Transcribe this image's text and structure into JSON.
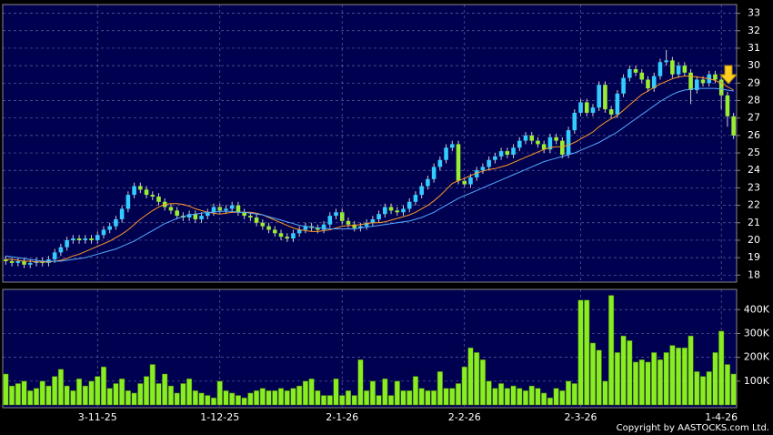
{
  "chart_data": [
    {
      "type": "candlestick",
      "up_color": "#33ccff",
      "down_color": "#99ee33",
      "grid": true,
      "ylim": [
        17.6,
        33.5
      ],
      "yticks": [
        18,
        19,
        20,
        21,
        22,
        23,
        24,
        25,
        26,
        27,
        28,
        29,
        30,
        31,
        32,
        33
      ],
      "open": [
        18.9,
        18.8,
        18.7,
        18.8,
        18.6,
        18.7,
        18.8,
        18.7,
        18.9,
        19.3,
        19.6,
        20.0,
        20.1,
        20.0,
        20.1,
        20.0,
        20.3,
        20.6,
        20.8,
        21.2,
        21.8,
        22.6,
        23.1,
        22.9,
        22.6,
        22.5,
        22.2,
        21.9,
        21.7,
        21.4,
        21.3,
        21.5,
        21.2,
        21.4,
        21.6,
        21.9,
        21.7,
        21.8,
        22.0,
        21.6,
        21.4,
        21.3,
        21.0,
        20.8,
        20.6,
        20.4,
        20.2,
        20.1,
        20.4,
        20.6,
        20.8,
        20.7,
        20.6,
        20.9,
        21.4,
        21.6,
        21.1,
        20.9,
        20.7,
        20.8,
        21.0,
        21.2,
        21.5,
        21.9,
        21.7,
        21.6,
        21.8,
        22.2,
        22.6,
        23.1,
        23.5,
        24.2,
        24.6,
        25.3,
        25.5,
        23.4,
        23.2,
        23.6,
        24.0,
        24.2,
        24.6,
        24.8,
        25.1,
        24.9,
        25.3,
        25.7,
        26.0,
        25.7,
        25.5,
        25.2,
        25.9,
        25.7,
        24.9,
        26.3,
        27.3,
        27.9,
        27.3,
        27.6,
        28.9,
        27.5,
        27.2,
        28.4,
        29.3,
        29.8,
        29.6,
        29.2,
        28.7,
        29.4,
        30.2,
        30.3,
        29.5,
        30.0,
        29.6,
        28.6,
        29.2,
        29.0,
        29.5,
        29.2,
        28.3,
        27.1
      ],
      "high": [
        19.1,
        19.0,
        19.0,
        19.0,
        18.9,
        19.0,
        19.0,
        19.1,
        19.5,
        19.8,
        20.2,
        20.3,
        20.3,
        20.3,
        20.3,
        20.5,
        20.8,
        21.0,
        21.4,
        22.0,
        22.8,
        23.3,
        23.3,
        23.1,
        22.8,
        22.7,
        22.4,
        22.1,
        21.9,
        21.6,
        21.7,
        21.7,
        21.6,
        21.8,
        22.1,
        22.1,
        22.0,
        22.2,
        22.2,
        21.8,
        21.6,
        21.5,
        21.2,
        21.0,
        20.8,
        20.6,
        20.4,
        20.6,
        20.8,
        21.0,
        21.0,
        20.9,
        21.1,
        21.6,
        21.8,
        21.8,
        21.3,
        21.1,
        21.0,
        21.2,
        21.4,
        21.7,
        22.1,
        22.1,
        21.9,
        22.0,
        22.4,
        22.8,
        23.3,
        23.7,
        24.4,
        24.8,
        25.5,
        25.7,
        25.7,
        23.6,
        23.8,
        24.2,
        24.4,
        24.8,
        25.0,
        25.3,
        25.3,
        25.5,
        25.9,
        26.2,
        26.2,
        25.9,
        25.7,
        26.1,
        26.1,
        25.9,
        26.5,
        27.5,
        28.1,
        28.1,
        27.8,
        29.1,
        29.1,
        27.7,
        28.6,
        29.5,
        30.0,
        30.0,
        29.8,
        29.4,
        29.6,
        30.4,
        30.9,
        30.5,
        30.2,
        30.2,
        29.8,
        29.4,
        29.4,
        29.7,
        29.7,
        29.4,
        28.5,
        27.3
      ],
      "low": [
        18.6,
        18.5,
        18.5,
        18.4,
        18.4,
        18.5,
        18.5,
        18.5,
        18.7,
        19.1,
        19.4,
        19.8,
        19.8,
        19.8,
        19.8,
        19.8,
        20.1,
        20.4,
        20.6,
        21.0,
        21.6,
        22.4,
        22.7,
        22.4,
        22.3,
        22.0,
        21.7,
        21.5,
        21.2,
        21.1,
        21.1,
        21.0,
        21.0,
        21.2,
        21.4,
        21.5,
        21.5,
        21.6,
        21.4,
        21.2,
        21.1,
        20.8,
        20.6,
        20.4,
        20.2,
        20.0,
        19.9,
        19.9,
        20.2,
        20.4,
        20.5,
        20.4,
        20.4,
        20.7,
        21.2,
        20.9,
        20.7,
        20.5,
        20.5,
        20.6,
        20.8,
        21.0,
        21.3,
        21.5,
        21.4,
        21.4,
        21.6,
        22.0,
        22.4,
        22.9,
        23.3,
        24.0,
        24.4,
        25.1,
        23.2,
        23.0,
        23.0,
        23.4,
        23.8,
        24.0,
        24.4,
        24.6,
        24.7,
        24.7,
        25.1,
        25.5,
        25.5,
        25.3,
        25.0,
        25.0,
        25.5,
        24.7,
        24.7,
        26.1,
        27.1,
        27.1,
        27.1,
        27.4,
        27.3,
        27.0,
        27.0,
        28.2,
        29.1,
        29.4,
        29.0,
        28.5,
        28.5,
        29.2,
        30.0,
        29.3,
        29.3,
        29.4,
        27.8,
        28.4,
        28.8,
        28.8,
        29.0,
        27.5,
        26.5,
        25.8
      ],
      "close": [
        18.8,
        18.7,
        18.8,
        18.6,
        18.7,
        18.8,
        18.7,
        18.9,
        19.3,
        19.6,
        20.0,
        20.1,
        20.0,
        20.1,
        20.0,
        20.3,
        20.6,
        20.8,
        21.2,
        21.8,
        22.6,
        23.1,
        22.9,
        22.6,
        22.5,
        22.2,
        21.9,
        21.7,
        21.4,
        21.3,
        21.5,
        21.2,
        21.4,
        21.6,
        21.9,
        21.7,
        21.8,
        22.0,
        21.6,
        21.4,
        21.3,
        21.0,
        20.8,
        20.6,
        20.4,
        20.2,
        20.1,
        20.4,
        20.6,
        20.8,
        20.7,
        20.6,
        20.9,
        21.4,
        21.6,
        21.1,
        20.9,
        20.7,
        20.8,
        21.0,
        21.2,
        21.5,
        21.9,
        21.7,
        21.6,
        21.8,
        22.2,
        22.6,
        23.1,
        23.5,
        24.2,
        24.6,
        25.3,
        25.5,
        23.4,
        23.2,
        23.6,
        24.0,
        24.2,
        24.6,
        24.8,
        25.1,
        24.9,
        25.3,
        25.7,
        26.0,
        25.7,
        25.5,
        25.2,
        25.9,
        25.7,
        24.9,
        26.3,
        27.3,
        27.9,
        27.3,
        27.6,
        28.9,
        27.5,
        27.2,
        28.4,
        29.3,
        29.8,
        29.6,
        29.2,
        28.7,
        29.4,
        30.2,
        30.3,
        29.5,
        30.0,
        29.6,
        28.6,
        29.2,
        29.0,
        29.5,
        29.2,
        28.3,
        27.1,
        26.0
      ],
      "series": [
        {
          "color": "#ff9922",
          "values": [
            18.9,
            18.9,
            18.85,
            18.8,
            18.8,
            18.75,
            18.75,
            18.75,
            18.8,
            18.85,
            18.95,
            19.1,
            19.2,
            19.35,
            19.5,
            19.65,
            19.8,
            19.95,
            20.15,
            20.35,
            20.6,
            20.9,
            21.2,
            21.45,
            21.7,
            21.9,
            22.05,
            22.1,
            22.1,
            22.05,
            21.95,
            21.8,
            21.7,
            21.6,
            21.55,
            21.5,
            21.55,
            21.6,
            21.6,
            21.6,
            21.6,
            21.55,
            21.45,
            21.3,
            21.15,
            21.0,
            20.85,
            20.7,
            20.6,
            20.55,
            20.5,
            20.5,
            20.55,
            20.6,
            20.7,
            20.8,
            20.85,
            20.85,
            20.9,
            20.95,
            21.0,
            21.0,
            21.05,
            21.15,
            21.25,
            21.35,
            21.45,
            21.6,
            21.8,
            22.0,
            22.25,
            22.55,
            22.9,
            23.25,
            23.4,
            23.55,
            23.7,
            23.85,
            23.95,
            24.05,
            24.1,
            24.2,
            24.3,
            24.45,
            24.6,
            24.75,
            24.9,
            25.05,
            25.2,
            25.3,
            25.35,
            25.35,
            25.45,
            25.6,
            25.8,
            26.0,
            26.2,
            26.5,
            26.75,
            26.95,
            27.15,
            27.45,
            27.75,
            28.05,
            28.35,
            28.55,
            28.75,
            28.95,
            29.1,
            29.25,
            29.35,
            29.4,
            29.4,
            29.35,
            29.3,
            29.25,
            29.15,
            29.0,
            28.8,
            28.6
          ]
        },
        {
          "color": "#55aaff",
          "values": [
            19.1,
            19.05,
            19.0,
            18.95,
            18.9,
            18.85,
            18.8,
            18.8,
            18.8,
            18.8,
            18.85,
            18.9,
            18.95,
            19.0,
            19.1,
            19.2,
            19.3,
            19.4,
            19.5,
            19.65,
            19.8,
            19.95,
            20.15,
            20.35,
            20.55,
            20.75,
            20.95,
            21.1,
            21.25,
            21.35,
            21.45,
            21.5,
            21.55,
            21.6,
            21.6,
            21.65,
            21.65,
            21.65,
            21.6,
            21.6,
            21.55,
            21.5,
            21.45,
            21.35,
            21.25,
            21.15,
            21.05,
            20.95,
            20.85,
            20.8,
            20.75,
            20.7,
            20.7,
            20.65,
            20.65,
            20.65,
            20.65,
            20.65,
            20.7,
            20.75,
            20.8,
            20.85,
            20.9,
            20.95,
            21.0,
            21.05,
            21.1,
            21.2,
            21.3,
            21.45,
            21.6,
            21.8,
            22.0,
            22.2,
            22.4,
            22.55,
            22.7,
            22.85,
            23.0,
            23.15,
            23.3,
            23.45,
            23.6,
            23.75,
            23.9,
            24.05,
            24.2,
            24.35,
            24.5,
            24.6,
            24.7,
            24.8,
            24.9,
            25.0,
            25.15,
            25.3,
            25.45,
            25.6,
            25.8,
            26.0,
            26.2,
            26.45,
            26.7,
            26.95,
            27.2,
            27.45,
            27.7,
            27.95,
            28.15,
            28.35,
            28.5,
            28.6,
            28.65,
            28.7,
            28.7,
            28.7,
            28.7,
            28.65,
            28.6,
            28.55
          ]
        }
      ]
    },
    {
      "type": "bar",
      "color": "#88ee22",
      "grid": true,
      "ylim": [
        0,
        485000
      ],
      "yticks": [
        {
          "value": 100000,
          "label": "100K"
        },
        {
          "value": 200000,
          "label": "200K"
        },
        {
          "value": 300000,
          "label": "300K"
        },
        {
          "value": 400000,
          "label": "400K"
        }
      ],
      "categories": [
        null,
        null,
        null,
        null,
        null,
        null,
        null,
        null,
        null,
        null,
        null,
        null,
        null,
        null,
        null,
        "3-11-25",
        null,
        null,
        null,
        null,
        null,
        null,
        null,
        null,
        null,
        null,
        null,
        null,
        null,
        null,
        null,
        null,
        null,
        null,
        null,
        "1-12-25",
        null,
        null,
        null,
        null,
        null,
        null,
        null,
        null,
        null,
        null,
        null,
        null,
        null,
        null,
        null,
        null,
        null,
        null,
        null,
        "2-1-26",
        null,
        null,
        null,
        null,
        null,
        null,
        null,
        null,
        null,
        null,
        null,
        null,
        null,
        null,
        null,
        null,
        null,
        null,
        null,
        "2-2-26",
        null,
        null,
        null,
        null,
        null,
        null,
        null,
        null,
        null,
        null,
        null,
        null,
        null,
        null,
        null,
        null,
        null,
        null,
        "2-3-26",
        null,
        null,
        null,
        null,
        null,
        null,
        null,
        null,
        null,
        null,
        null,
        null,
        null,
        null,
        null,
        null,
        null,
        null,
        null,
        null,
        null,
        null,
        "1-4-26",
        null,
        null
      ],
      "values": [
        130000,
        80000,
        90000,
        100000,
        60000,
        70000,
        100000,
        80000,
        120000,
        150000,
        80000,
        60000,
        110000,
        80000,
        100000,
        120000,
        160000,
        70000,
        90000,
        110000,
        60000,
        50000,
        90000,
        120000,
        170000,
        90000,
        130000,
        80000,
        50000,
        90000,
        110000,
        60000,
        50000,
        40000,
        30000,
        100000,
        60000,
        50000,
        40000,
        30000,
        50000,
        60000,
        70000,
        60000,
        60000,
        70000,
        60000,
        70000,
        80000,
        100000,
        110000,
        60000,
        40000,
        40000,
        110000,
        40000,
        60000,
        40000,
        190000,
        60000,
        100000,
        40000,
        110000,
        40000,
        100000,
        60000,
        60000,
        120000,
        70000,
        60000,
        60000,
        140000,
        70000,
        70000,
        90000,
        160000,
        240000,
        220000,
        190000,
        100000,
        70000,
        90000,
        70000,
        80000,
        70000,
        60000,
        80000,
        70000,
        50000,
        30000,
        70000,
        60000,
        100000,
        90000,
        440000,
        440000,
        260000,
        230000,
        100000,
        460000,
        220000,
        290000,
        270000,
        180000,
        190000,
        180000,
        220000,
        190000,
        220000,
        250000,
        240000,
        240000,
        290000,
        140000,
        120000,
        140000,
        220000,
        310000,
        170000,
        130000
      ]
    }
  ],
  "copyright": "Copyright by AASTOCKS.com Ltd."
}
